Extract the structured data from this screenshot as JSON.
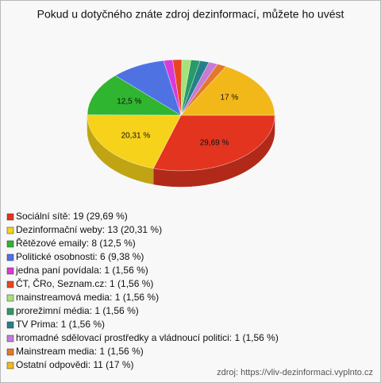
{
  "chart_data": {
    "type": "pie",
    "title": "Pokud u dotyčného znáte zdroj dezinformací, můžete ho uvést",
    "categories": [
      "Sociální sítě: 19 (29,69 %)",
      "Dezinformační weby: 13 (20,31 %)",
      "Řětězové emaily: 8 (12,5 %)",
      "Politické osobnosti: 6 (9,38 %)",
      "jedna paní povídala: 1 (1,56 %)",
      "ČT, ČRo, Seznam.cz: 1 (1,56 %)",
      "mainstreamová media: 1 (1,56 %)",
      "prorežimní média: 1 (1,56 %)",
      "TV Prima: 1 (1,56 %)",
      "hromadné sdělovací prostředky a vládnoucí politici: 1 (1,56 %)",
      "Mainstream media: 1 (1,56 %)",
      "Ostatní odpovědi: 11 (17 %)"
    ],
    "values": [
      29.69,
      20.31,
      12.5,
      9.38,
      1.56,
      1.56,
      1.56,
      1.56,
      1.56,
      1.56,
      1.56,
      17
    ],
    "value_labels": [
      "29,69 %",
      "20,31 %",
      "12,5 %",
      null,
      null,
      null,
      null,
      null,
      null,
      null,
      null,
      "17 %"
    ],
    "colors": [
      "#e33420",
      "#f6d21a",
      "#2fb52f",
      "#4f72e3",
      "#d83ad8",
      "#e8461f",
      "#a6e27a",
      "#2a9a66",
      "#24808a",
      "#c77ad6",
      "#e3782a",
      "#f2b81a"
    ],
    "source": "zdroj: https://vliv-dezinformaci.vyplnto.cz"
  }
}
